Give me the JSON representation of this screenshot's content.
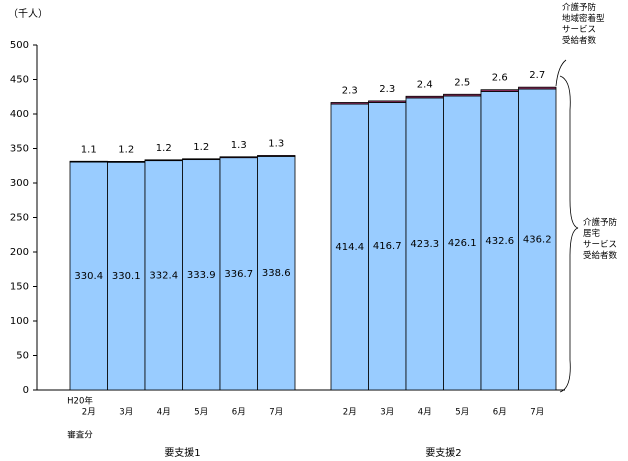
{
  "chart_data": {
    "type": "stacked-bar",
    "unit_label": "（千人）",
    "x_note": "H20年",
    "footnote": "審査分",
    "categories": [
      "2月",
      "3月",
      "4月",
      "5月",
      "6月",
      "7月",
      "2月",
      "3月",
      "4月",
      "5月",
      "6月",
      "7月"
    ],
    "group_labels": [
      "要支援1",
      "要支援2"
    ],
    "series": [
      {
        "name": "介護予防\n居宅\nサービス\n受給者数",
        "color": "#99ccff",
        "values": [
          330.4,
          330.1,
          332.4,
          333.9,
          336.7,
          338.6,
          414.4,
          416.7,
          423.3,
          426.1,
          432.6,
          436.2
        ]
      },
      {
        "name": "介護予防\n地域密着型\nサービス\n受給者数",
        "color": "#993366",
        "values": [
          1.1,
          1.2,
          1.2,
          1.2,
          1.3,
          1.3,
          2.3,
          2.3,
          2.4,
          2.5,
          2.6,
          2.7
        ]
      }
    ],
    "ylim": [
      0,
      500
    ],
    "yticks": [
      0,
      50,
      100,
      150,
      200,
      250,
      300,
      350,
      400,
      450,
      500
    ]
  }
}
